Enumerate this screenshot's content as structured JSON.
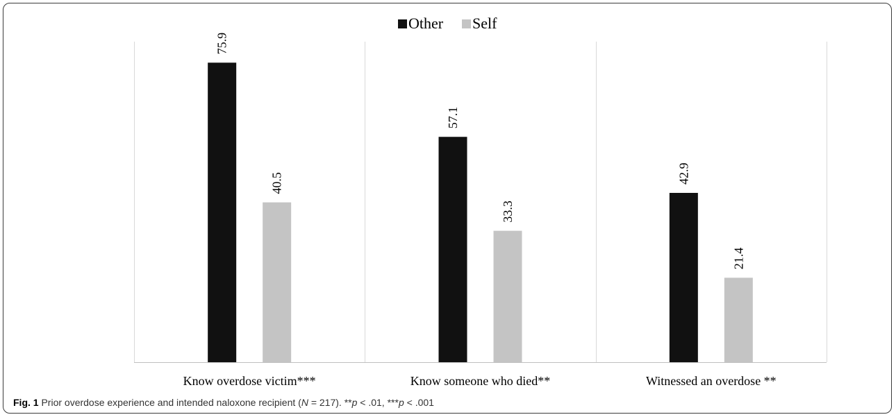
{
  "caption": {
    "fig_label": "Fig. 1",
    "text_before_n": "Prior overdose experience and intended naloxone recipient (",
    "n_symbol": "N",
    "text_n_value": " = 217). **",
    "p_symbol_1": "p",
    "text_p1": " < .01, ***",
    "p_symbol_2": "p",
    "text_p2": " < .001"
  },
  "colors": {
    "Other": "#111111",
    "Self": "#c4c4c4",
    "gridline": "#d9d9d9",
    "axis": "#bfbfbf"
  },
  "chart_data": {
    "type": "bar",
    "categories": [
      "Know overdose victim***",
      "Know someone who died**",
      "Witnessed an overdose **"
    ],
    "series": [
      {
        "name": "Other",
        "values": [
          75.9,
          57.1,
          42.9
        ]
      },
      {
        "name": "Self",
        "values": [
          40.5,
          33.3,
          21.4
        ]
      }
    ],
    "data_labels": [
      [
        "75.9",
        "57.1",
        "42.9"
      ],
      [
        "40.5",
        "33.3",
        "21.4"
      ]
    ],
    "ylim": [
      0,
      80
    ],
    "legend_position": "top-center",
    "grid": "vertical category separators"
  }
}
